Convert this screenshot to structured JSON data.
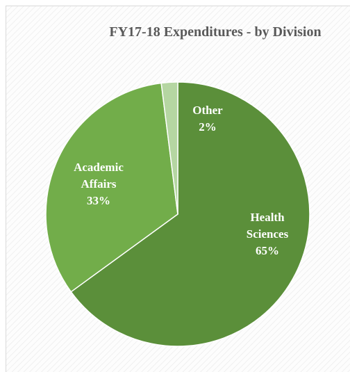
{
  "chart_data": {
    "type": "pie",
    "title": "FY17-18 Expenditures - by Division",
    "categories": [
      "Health Sciences",
      "Academic Affairs",
      "Other"
    ],
    "values": [
      65,
      33,
      2
    ],
    "value_labels": [
      "65%",
      "33%",
      "2%"
    ],
    "colors": [
      "#5b8f3a",
      "#72ad4a",
      "#b5d6a2"
    ]
  }
}
